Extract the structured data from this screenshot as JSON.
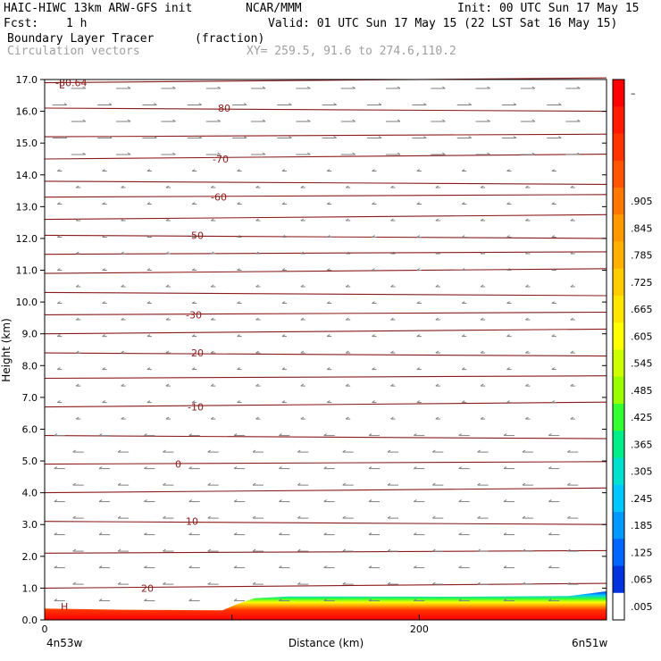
{
  "header": {
    "model": "HAIC-HIWC 13km ARW-GFS init",
    "org": "NCAR/MMM",
    "init": "Init: 00 UTC Sun 17 May 15",
    "fcst_label": "Fcst:",
    "fcst_value": "1 h",
    "valid": "Valid: 01 UTC Sun 17 May 15 (22 LST Sat 16 May 15)",
    "field_name": "Boundary Layer Tracer",
    "field_units": "(fraction)",
    "vector_name": "Circulation vectors",
    "xy_range": "XY= 259.5, 91.6 to 274.6,110.2"
  },
  "chart_data": {
    "type": "heatmap",
    "ylabel": "Height (km)",
    "xlabel": "Distance (km)",
    "ylim": [
      0,
      17
    ],
    "xlim": [
      0,
      300
    ],
    "y_ticks": [
      "0.0",
      "1.0",
      "2.0",
      "3.0",
      "4.0",
      "5.0",
      "6.0",
      "7.0",
      "8.0",
      "9.0",
      "10.0",
      "11.0",
      "12.0",
      "13.0",
      "14.0",
      "15.0",
      "16.0",
      "17.0"
    ],
    "x_ticks": [
      {
        "value": 0,
        "label": "0"
      },
      {
        "value": 200,
        "label": "200"
      }
    ],
    "x_endpoints": {
      "left": "4n53w",
      "right": "6n51w"
    },
    "colorbar": {
      "labels": [
        "–",
        "",
        "",
        "",
        ".905",
        ".845",
        ".785",
        ".725",
        ".665",
        ".605",
        ".545",
        ".485",
        ".425",
        ".365",
        ".305",
        ".245",
        ".185",
        ".125",
        ".065",
        ".005"
      ],
      "colors": [
        "#ff0000",
        "#ff1a00",
        "#ff3300",
        "#ff5500",
        "#ff7700",
        "#ff9900",
        "#ffb000",
        "#ffcc00",
        "#ffe600",
        "#ffff00",
        "#ccff00",
        "#99ff00",
        "#33ff33",
        "#00ee88",
        "#00e0d0",
        "#00c8ff",
        "#0099ff",
        "#0066ff",
        "#0033dd",
        "#ffffff"
      ]
    },
    "tracer_surface_height_km": [
      {
        "x": 0,
        "h": 0.36
      },
      {
        "x": 40,
        "h": 0.32
      },
      {
        "x": 95,
        "h": 0.3
      },
      {
        "x": 102,
        "h": 0.48
      },
      {
        "x": 112,
        "h": 0.68
      },
      {
        "x": 130,
        "h": 0.74
      },
      {
        "x": 220,
        "h": 0.73
      },
      {
        "x": 280,
        "h": 0.75
      },
      {
        "x": 300,
        "h": 0.9
      }
    ],
    "temperature_contours": [
      {
        "label": "-80.64",
        "y": 16.9
      },
      {
        "label": "-80",
        "y": 16.1
      },
      {
        "label": "-70",
        "y": 14.5
      },
      {
        "label": "-60",
        "y": 13.3
      },
      {
        "label": "-50",
        "y": 12.1
      },
      {
        "label": "-30",
        "y": 9.6
      },
      {
        "label": "-20",
        "y": 8.4
      },
      {
        "label": "-10",
        "y": 6.7
      },
      {
        "label": "0",
        "y": 4.9
      },
      {
        "label": "10",
        "y": 3.1
      },
      {
        "label": "20",
        "y": 1.0
      }
    ],
    "marker": "L",
    "marker2": "H"
  }
}
